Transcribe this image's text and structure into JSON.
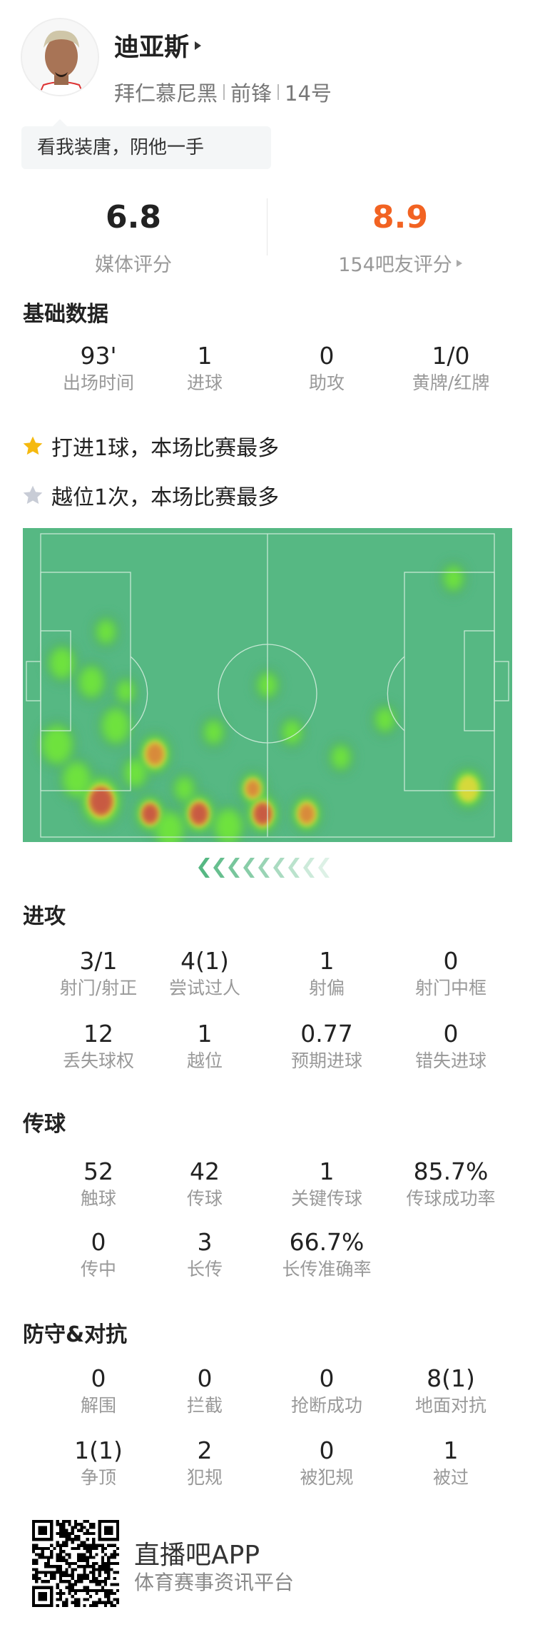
{
  "player": {
    "name": "迪亚斯",
    "team": "拜仁慕尼黑",
    "position": "前锋",
    "number": "14号",
    "quote": "看我装唐，阴他一手"
  },
  "ratings": {
    "media": {
      "value": "6.8",
      "label": "媒体评分"
    },
    "fans": {
      "value": "8.9",
      "label": "154吧友评分",
      "color": "#f26322"
    }
  },
  "basic": {
    "title": "基础数据",
    "stats": [
      {
        "value": "93'",
        "label": "出场时间"
      },
      {
        "value": "1",
        "label": "进球"
      },
      {
        "value": "0",
        "label": "助攻"
      },
      {
        "value": "1/0",
        "label": "黄牌/红牌"
      }
    ]
  },
  "highlights": [
    {
      "icon": "star-gold-icon",
      "text": "打进1球，本场比赛最多",
      "color": "#f5b90f"
    },
    {
      "icon": "star-gray-icon",
      "text": "越位1次，本场比赛最多",
      "color": "#c8ccd6"
    }
  ],
  "heatmap": {
    "pitch_color": "#56b883",
    "direction": "attacking-left"
  },
  "attack": {
    "title": "进攻",
    "stats": [
      {
        "value": "3/1",
        "label": "射门/射正"
      },
      {
        "value": "4(1)",
        "label": "尝试过人"
      },
      {
        "value": "1",
        "label": "射偏"
      },
      {
        "value": "0",
        "label": "射门中框"
      },
      {
        "value": "12",
        "label": "丢失球权"
      },
      {
        "value": "1",
        "label": "越位"
      },
      {
        "value": "0.77",
        "label": "预期进球"
      },
      {
        "value": "0",
        "label": "错失进球"
      }
    ]
  },
  "passing": {
    "title": "传球",
    "stats": [
      {
        "value": "52",
        "label": "触球"
      },
      {
        "value": "42",
        "label": "传球"
      },
      {
        "value": "1",
        "label": "关键传球"
      },
      {
        "value": "85.7%",
        "label": "传球成功率"
      },
      {
        "value": "0",
        "label": "传中"
      },
      {
        "value": "3",
        "label": "长传"
      },
      {
        "value": "66.7%",
        "label": "长传准确率"
      }
    ]
  },
  "defense": {
    "title": "防守&对抗",
    "stats": [
      {
        "value": "0",
        "label": "解围"
      },
      {
        "value": "0",
        "label": "拦截"
      },
      {
        "value": "0",
        "label": "抢断成功"
      },
      {
        "value": "8(1)",
        "label": "地面对抗"
      },
      {
        "value": "1(1)",
        "label": "争顶"
      },
      {
        "value": "2",
        "label": "犯规"
      },
      {
        "value": "0",
        "label": "被犯规"
      },
      {
        "value": "1",
        "label": "被过"
      }
    ]
  },
  "footer": {
    "app": "直播吧APP",
    "tagline": "体育赛事资讯平台"
  }
}
